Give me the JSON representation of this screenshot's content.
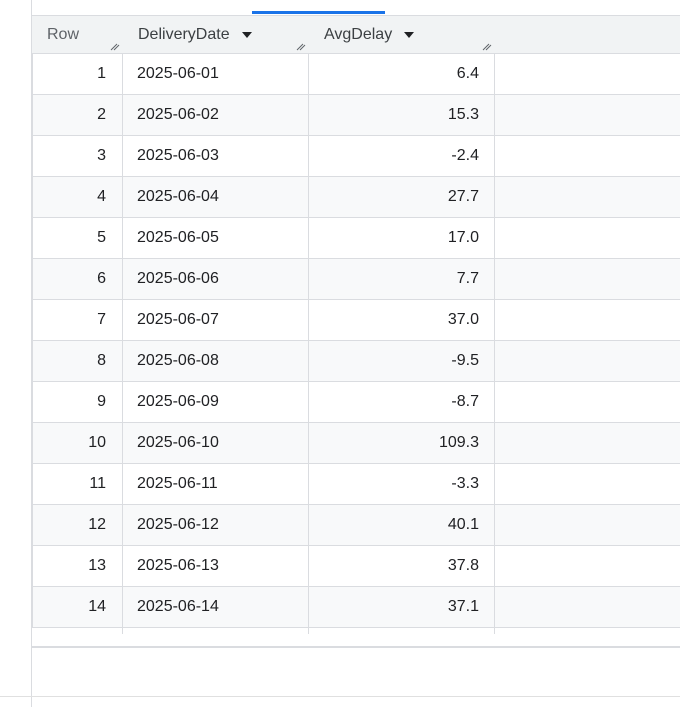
{
  "results": {
    "columns": {
      "row": "Row",
      "delivery_date": "DeliveryDate",
      "avg_delay": "AvgDelay"
    },
    "rows": [
      {
        "row": "1",
        "delivery_date": "2025-06-01",
        "avg_delay": "6.4"
      },
      {
        "row": "2",
        "delivery_date": "2025-06-02",
        "avg_delay": "15.3"
      },
      {
        "row": "3",
        "delivery_date": "2025-06-03",
        "avg_delay": "-2.4"
      },
      {
        "row": "4",
        "delivery_date": "2025-06-04",
        "avg_delay": "27.7"
      },
      {
        "row": "5",
        "delivery_date": "2025-06-05",
        "avg_delay": "17.0"
      },
      {
        "row": "6",
        "delivery_date": "2025-06-06",
        "avg_delay": "7.7"
      },
      {
        "row": "7",
        "delivery_date": "2025-06-07",
        "avg_delay": "37.0"
      },
      {
        "row": "8",
        "delivery_date": "2025-06-08",
        "avg_delay": "-9.5"
      },
      {
        "row": "9",
        "delivery_date": "2025-06-09",
        "avg_delay": "-8.7"
      },
      {
        "row": "10",
        "delivery_date": "2025-06-10",
        "avg_delay": "109.3"
      },
      {
        "row": "11",
        "delivery_date": "2025-06-11",
        "avg_delay": "-3.3"
      },
      {
        "row": "12",
        "delivery_date": "2025-06-12",
        "avg_delay": "40.1"
      },
      {
        "row": "13",
        "delivery_date": "2025-06-13",
        "avg_delay": "37.8"
      },
      {
        "row": "14",
        "delivery_date": "2025-06-14",
        "avg_delay": "37.1"
      }
    ]
  },
  "colors": {
    "accent": "#1a73e8",
    "header_bg": "#f1f3f4",
    "alt_row_bg": "#f8f9fa",
    "grid_line": "#dadce0"
  }
}
